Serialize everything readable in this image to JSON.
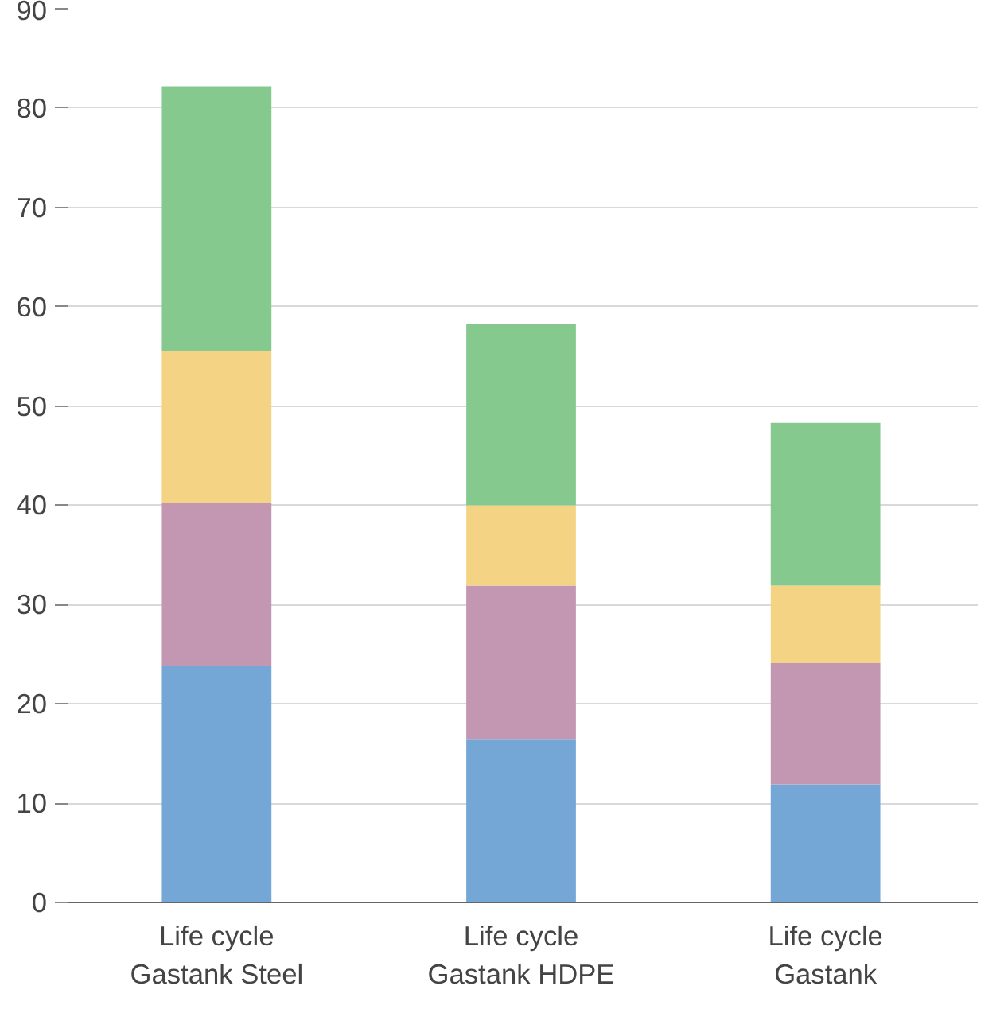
{
  "chart_data": {
    "type": "bar",
    "stacked": true,
    "categories": [
      "Life cycle\nGastank Steel",
      "Life cycle\nGastank HDPE",
      "Life cycle\nGastank"
    ],
    "series": [
      {
        "color": "#74a6d6",
        "values": [
          23.8,
          16.4,
          11.9
        ]
      },
      {
        "color": "#c397b1",
        "values": [
          16.4,
          15.5,
          12.2
        ]
      },
      {
        "color": "#f4d484",
        "values": [
          15.3,
          8.1,
          7.8
        ]
      },
      {
        "color": "#86c98f",
        "values": [
          26.7,
          18.3,
          16.4
        ]
      }
    ],
    "ylim": [
      0,
      90
    ],
    "yticks": [
      0,
      10,
      20,
      30,
      40,
      50,
      60,
      70,
      80,
      90
    ],
    "grid": "y"
  }
}
